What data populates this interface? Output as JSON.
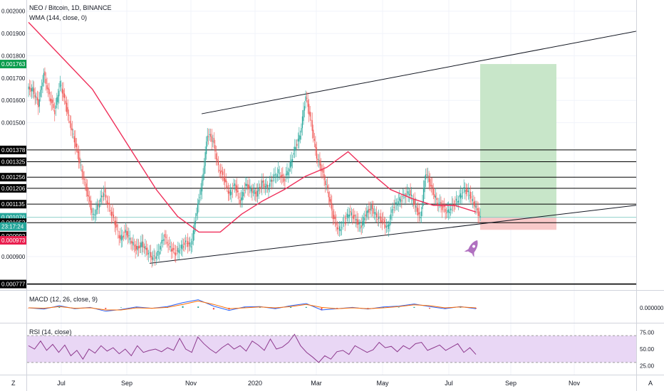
{
  "title": "NEO / Bitcoin, 1D, BINANCE",
  "indicators": {
    "wma_label": "WMA (144, close, 0)",
    "macd_label": "MACD (12, 26, close, 9)",
    "rsi_label": "RSI (14, close)"
  },
  "corner_labels": {
    "left": "Z",
    "right": "A"
  },
  "colors": {
    "price_line": "#ff0000",
    "candle_up": "#26a69a",
    "candle_down": "#ef5350",
    "wma": "#ef2f5a",
    "target_zone": "#c8e6c9",
    "stop_zone": "#f8c9c9",
    "rsi_band": "#e9d7f5",
    "rsi_line": "#8e3a8e",
    "rocket": "#b070c0"
  },
  "icons": {
    "rocket": "rocket-icon"
  },
  "chart_data": [
    {
      "type": "line",
      "pane": "price",
      "x_ticks": [
        "Jul",
        "Sep",
        "Nov",
        "2020",
        "Mar",
        "May",
        "Jul",
        "Sep",
        "Nov"
      ],
      "ylim": [
        0.00075,
        0.00205
      ],
      "y_ticks": [
        "0.002000",
        "0.001900",
        "0.001800",
        "0.001700",
        "0.001600",
        "0.001500",
        "0.000900"
      ],
      "series": [
        {
          "values": [
            0.00165,
            0.00158,
            0.00172,
            0.00162,
            0.00155,
            0.00168,
            0.00158,
            0.00148,
            0.00138,
            0.00128,
            0.00118,
            0.00108,
            0.00113,
            0.00119,
            0.00112,
            0.00105,
            0.00098,
            0.00101,
            0.00097,
            0.00093,
            0.00096,
            0.00092,
            0.00089,
            0.00092,
            0.00099,
            0.00095,
            0.00091,
            0.00094,
            0.00096,
            0.00095,
            0.0011,
            0.00123,
            0.00145,
            0.00142,
            0.0013,
            0.00125,
            0.00118,
            0.00122,
            0.00115,
            0.00122,
            0.0012,
            0.00118,
            0.00123,
            0.00121,
            0.00125,
            0.00128,
            0.00124,
            0.0013,
            0.00138,
            0.00145,
            0.00162,
            0.0015,
            0.00135,
            0.00128,
            0.0012,
            0.00108,
            0.00102,
            0.00105,
            0.0011,
            0.00107,
            0.00103,
            0.00109,
            0.00112,
            0.00108,
            0.00106,
            0.00103,
            0.00112,
            0.00115,
            0.00117,
            0.00119,
            0.00113,
            0.00107,
            0.00128,
            0.00121,
            0.00115,
            0.00112,
            0.0011,
            0.00113,
            0.00116,
            0.0012,
            0.00118,
            0.00113,
            0.00107
          ]
        }
      ]
    },
    {
      "type": "line",
      "pane": "wma",
      "series": [
        {
          "values": [
            0.00195,
            0.00185,
            0.00175,
            0.00165,
            0.0015,
            0.00135,
            0.0012,
            0.00108,
            0.00101,
            0.00101,
            0.00109,
            0.00115,
            0.0012,
            0.00126,
            0.0013,
            0.00137,
            0.00128,
            0.0012,
            0.00116,
            0.00113,
            0.00113,
            0.0011
          ]
        }
      ]
    },
    {
      "type": "line",
      "pane": "trendlines",
      "lines": [
        {
          "name": "upper-channel-line",
          "from": [
            "Nov",
            0.00154
          ],
          "to": [
            "end",
            0.00191
          ]
        },
        {
          "name": "lower-channel-line",
          "from": [
            "Sep",
            0.00087
          ],
          "to": [
            "end",
            0.00113
          ]
        }
      ]
    },
    {
      "type": "line",
      "pane": "levels",
      "price_levels": [
        {
          "label": "0.001763",
          "value": 0.001763,
          "color": "#0a9d4d",
          "line": false
        },
        {
          "label": "0.001378",
          "value": 0.001378,
          "color": "#000000",
          "line": true
        },
        {
          "label": "0.001325",
          "value": 0.001325,
          "color": "#000000",
          "line": true
        },
        {
          "label": "0.001256",
          "value": 0.001256,
          "color": "#000000",
          "line": true
        },
        {
          "label": "0.001206",
          "value": 0.001206,
          "color": "#000000",
          "line": true
        },
        {
          "label": "0.001135",
          "value": 0.001135,
          "color": "#000000",
          "line": true
        },
        {
          "label": "0.001076",
          "value": 0.001076,
          "color": "#26a69a",
          "line": false
        },
        {
          "label": "0.001052",
          "value": 0.001052,
          "color": "#000000",
          "line": true
        },
        {
          "label": "0.000992",
          "value": 0.000992,
          "color": "#000000",
          "line": false
        },
        {
          "label": "0.000973",
          "value": 0.000973,
          "color": "#e91e4e",
          "line": false
        },
        {
          "label": "0.000777",
          "value": 0.000777,
          "color": "#000000",
          "line": true
        }
      ],
      "countdown": {
        "label": "23:17:24",
        "color": "#26a69a"
      },
      "long_position": {
        "entry": 0.001076,
        "target": 0.001763,
        "stop": 0.00102
      }
    },
    {
      "type": "line",
      "pane": "macd",
      "y_ticks": [
        "0.000000"
      ],
      "series": [
        {
          "values": [
            0.0,
            -0.3,
            0.5,
            -0.2,
            0.1,
            -0.8,
            -0.4,
            0.2,
            -0.1,
            0.3,
            1.2,
            1.9,
            0.4,
            -0.6,
            0.2,
            0.3,
            -0.2,
            0.5,
            1.0,
            -0.5,
            -0.2,
            0.1,
            -0.3,
            0.2,
            0.4,
            0.9,
            0.3,
            -0.2,
            0.3,
            -0.2
          ]
        },
        {
          "values": [
            0.0,
            -0.1,
            0.3,
            -0.1,
            0.0,
            -0.5,
            -0.5,
            0.0,
            -0.1,
            0.1,
            0.8,
            1.6,
            0.8,
            -0.2,
            0.0,
            0.2,
            0.0,
            0.3,
            0.8,
            0.1,
            -0.2,
            0.0,
            -0.2,
            0.0,
            0.3,
            0.7,
            0.5,
            0.0,
            0.2,
            0.0
          ]
        }
      ]
    },
    {
      "type": "line",
      "pane": "rsi",
      "y_ticks": [
        "75.00",
        "50.00",
        "25.00"
      ],
      "ylim": [
        15,
        85
      ],
      "series": [
        {
          "values": [
            55,
            50,
            62,
            48,
            57,
            45,
            56,
            40,
            48,
            35,
            50,
            44,
            55,
            47,
            52,
            43,
            50,
            40,
            55,
            45,
            48,
            50,
            46,
            52,
            48,
            66,
            50,
            45,
            68,
            58,
            50,
            44,
            52,
            58,
            50,
            55,
            47,
            62,
            56,
            48,
            65,
            50,
            53,
            60,
            72,
            55,
            45,
            38,
            30,
            40,
            35,
            46,
            48,
            42,
            55,
            50,
            45,
            49,
            60,
            52,
            54,
            46,
            55,
            50,
            58,
            60,
            48,
            52,
            56,
            48,
            53,
            58,
            45,
            52,
            42
          ]
        }
      ]
    }
  ]
}
